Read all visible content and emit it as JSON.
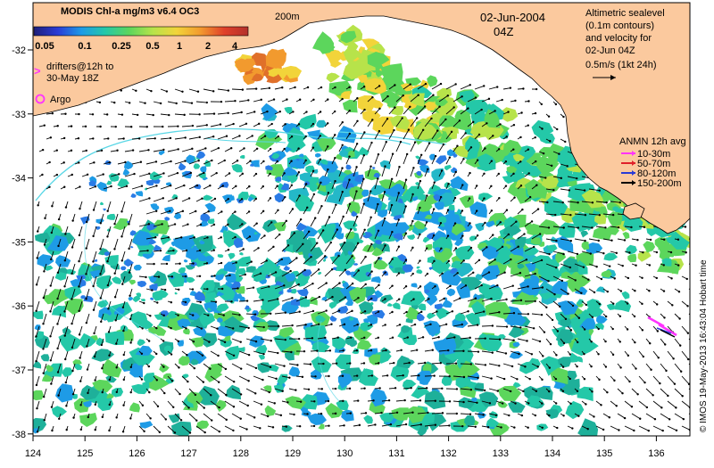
{
  "title": "MODIS Chl-a mg/m3 v6.4 OC3",
  "date": "02-Jun-2004",
  "time": "04Z",
  "isobath_label": "200m",
  "colorbar": {
    "ticks": [
      "0.05",
      "0.1",
      "0.25",
      "0.5",
      "1",
      "2",
      "4"
    ],
    "colors": [
      "#1f1f7a",
      "#2a3bd6",
      "#1e9be6",
      "#24c8a8",
      "#5cd65c",
      "#b7e34a",
      "#f2d43a",
      "#f29a2e",
      "#e0402a",
      "#b3302a"
    ]
  },
  "drifters_label": [
    "drifters@12h to",
    "30-May 18Z"
  ],
  "argo_label": "Argo",
  "altimetry_label": [
    "Altimetric sealevel",
    "(0.1m contours)",
    "and velocity for",
    "02-Jun 04Z"
  ],
  "velocity_scale_label": "0.5m/s (1kt 24h)",
  "anmn": {
    "title": "ANMN 12h avg",
    "items": [
      {
        "label": "10-30m",
        "color": "#ff33ff"
      },
      {
        "label": "50-70m",
        "color": "#e0202a"
      },
      {
        "label": "80-120m",
        "color": "#2a3bd6"
      },
      {
        "label": "150-200m",
        "color": "#000000"
      }
    ]
  },
  "credit": "© IMOS 19-May-2013 16:43:04 Hobart time",
  "x_ticks": [
    "124",
    "125",
    "126",
    "127",
    "128",
    "129",
    "130",
    "131",
    "132",
    "133",
    "134",
    "135",
    "136"
  ],
  "y_ticks": [
    "-32",
    "-33",
    "-34",
    "-35",
    "-36",
    "-37",
    "-38"
  ],
  "colors": {
    "land": "#fbc99e",
    "ocean": "#ffffff",
    "contour": "#5ad7e6"
  }
}
